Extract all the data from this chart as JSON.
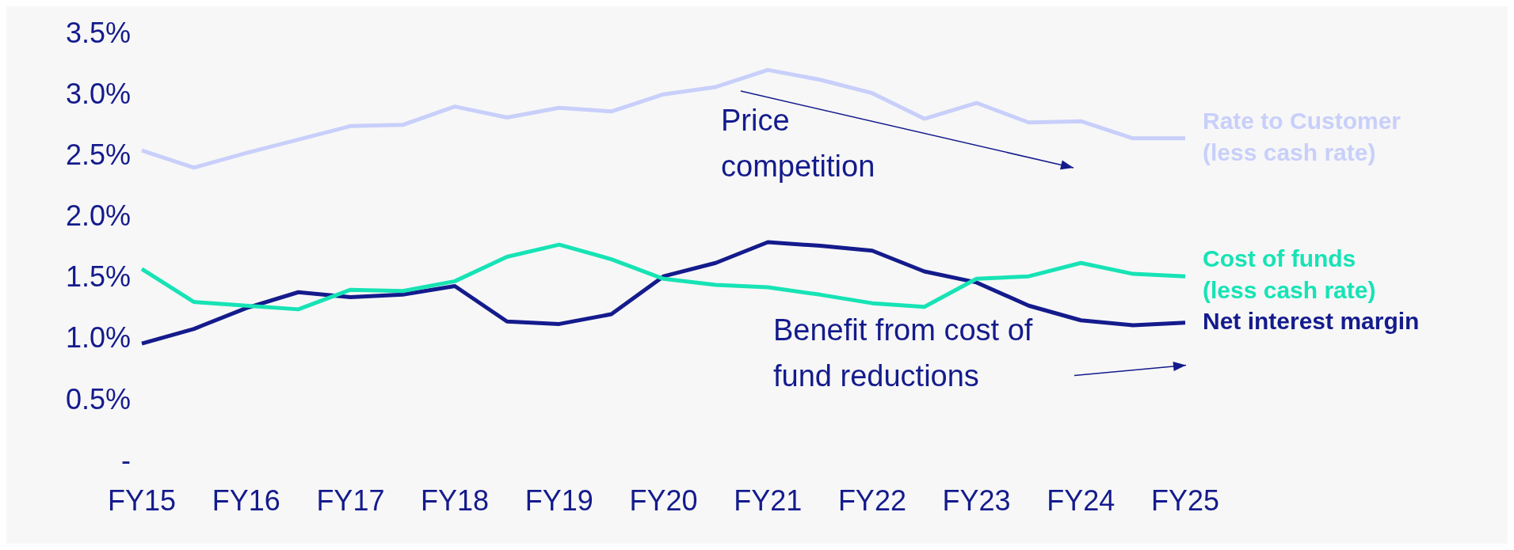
{
  "chart_data": {
    "type": "line",
    "categories": [
      "FY15",
      null,
      "FY16",
      null,
      "FY17",
      null,
      "FY18",
      null,
      "FY19",
      null,
      "FY20",
      null,
      "FY21",
      null,
      "FY22",
      null,
      "FY23",
      null,
      "FY24",
      null,
      "FY25"
    ],
    "series": [
      {
        "name": "Rate to Customer (less cash rate)",
        "color": "#c8cffa",
        "values": [
          2.55,
          2.41,
          2.53,
          2.64,
          2.75,
          2.76,
          2.91,
          2.82,
          2.9,
          2.87,
          3.01,
          3.07,
          3.21,
          3.13,
          3.02,
          2.81,
          2.94,
          2.78,
          2.79,
          2.65,
          2.65
        ]
      },
      {
        "name": "Cost of funds (less cash rate)",
        "color": "#17e3b5",
        "values": [
          1.58,
          1.31,
          1.28,
          1.25,
          1.41,
          1.4,
          1.48,
          1.68,
          1.78,
          1.66,
          1.5,
          1.45,
          1.43,
          1.37,
          1.3,
          1.27,
          1.5,
          1.52,
          1.63,
          1.54,
          1.52
        ]
      },
      {
        "name": "Net interest margin",
        "color": "#141b8c",
        "values": [
          0.97,
          1.09,
          1.26,
          1.39,
          1.35,
          1.37,
          1.44,
          1.15,
          1.13,
          1.21,
          1.52,
          1.63,
          1.8,
          1.77,
          1.73,
          1.56,
          1.47,
          1.28,
          1.16,
          1.12,
          1.14
        ]
      }
    ],
    "ylim": [
      0,
      3.5
    ],
    "yticks": [
      {
        "value": 0,
        "label": "-"
      },
      {
        "value": 0.5,
        "label": "0.5%"
      },
      {
        "value": 1,
        "label": "1.0%"
      },
      {
        "value": 1.5,
        "label": "1.5%"
      },
      {
        "value": 2,
        "label": "2.0%"
      },
      {
        "value": 2.5,
        "label": "2.5%"
      },
      {
        "value": 3,
        "label": "3.0%"
      },
      {
        "value": 3.5,
        "label": "3.5%"
      }
    ],
    "annotations": [
      "Price competition",
      "Benefit from cost of fund reductions"
    ],
    "grid": false,
    "legend": false,
    "marker": "none"
  }
}
